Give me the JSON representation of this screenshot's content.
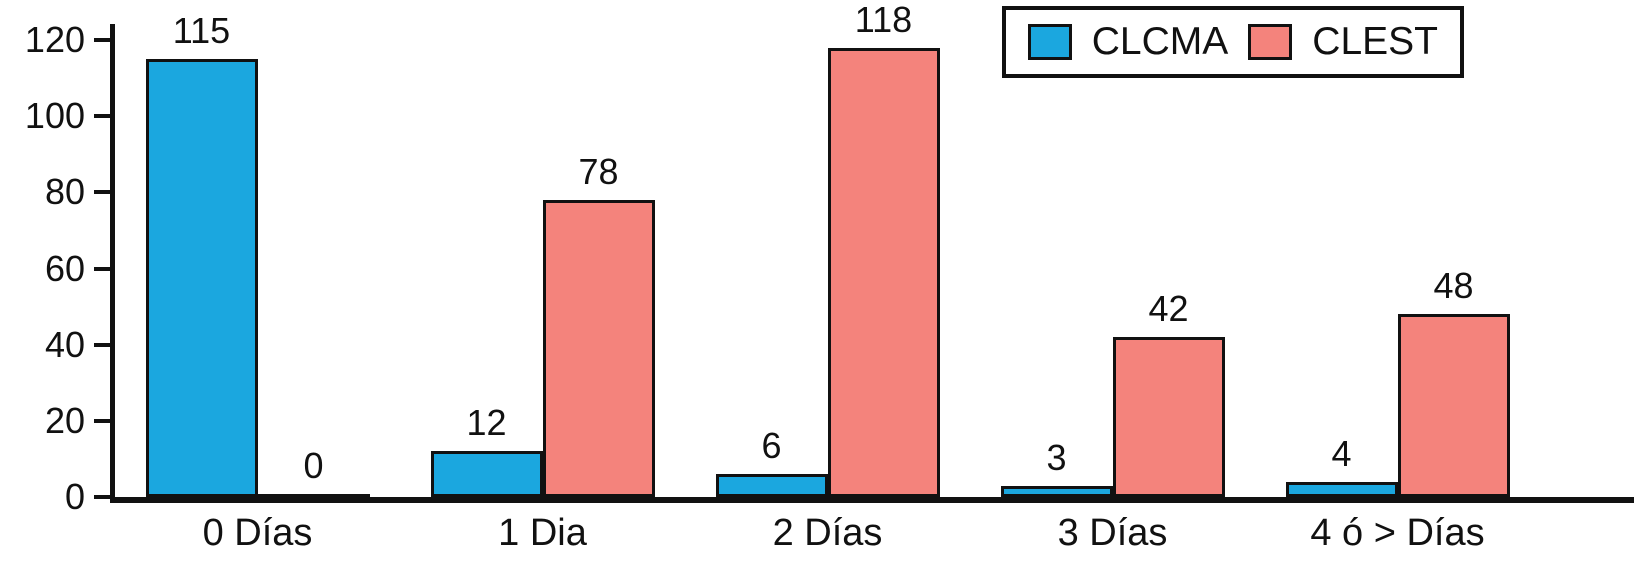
{
  "chart_data": {
    "type": "bar",
    "title": "",
    "xlabel": "",
    "ylabel": "",
    "categories": [
      "0 Días",
      "1 Dia",
      "2 Días",
      "3 Días",
      "4 ó > Días"
    ],
    "series": [
      {
        "name": "CLCMA",
        "color": "#1BA7DF",
        "values": [
          115,
          12,
          6,
          3,
          4
        ]
      },
      {
        "name": "CLEST",
        "color": "#F4837C",
        "values": [
          0,
          78,
          118,
          42,
          48
        ]
      }
    ],
    "ylim": [
      0,
      120
    ],
    "ytick_step": 20,
    "grid": false,
    "legend_position": "top-right"
  }
}
